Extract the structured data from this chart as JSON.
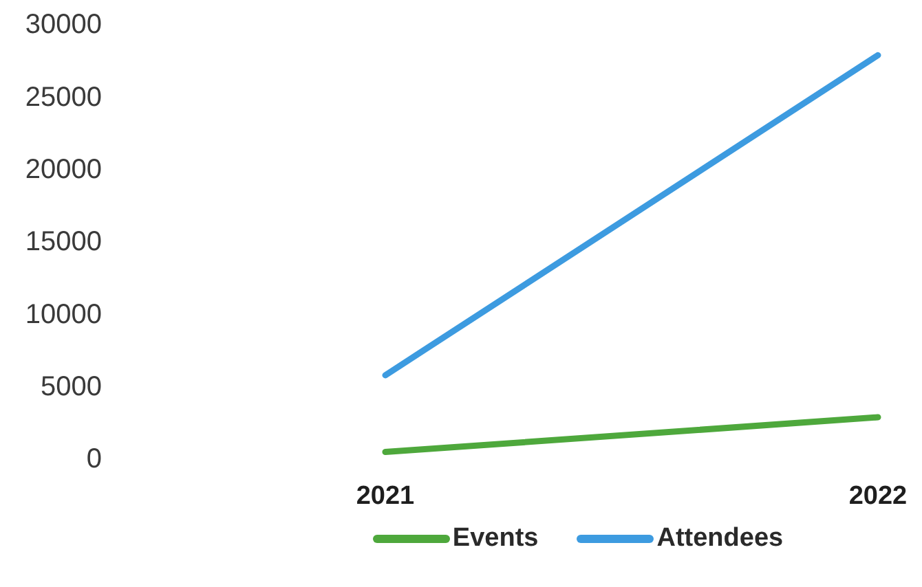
{
  "chart_data": {
    "type": "line",
    "categories": [
      "2021",
      "2022"
    ],
    "series": [
      {
        "name": "Events",
        "color": "#4ea83c",
        "values": [
          400,
          2800
        ]
      },
      {
        "name": "Attendees",
        "color": "#3d9be0",
        "values": [
          5700,
          27800
        ]
      }
    ],
    "ylim": [
      0,
      30000
    ],
    "yticks": [
      0,
      5000,
      10000,
      15000,
      20000,
      25000,
      30000
    ],
    "legend": "bottom"
  }
}
